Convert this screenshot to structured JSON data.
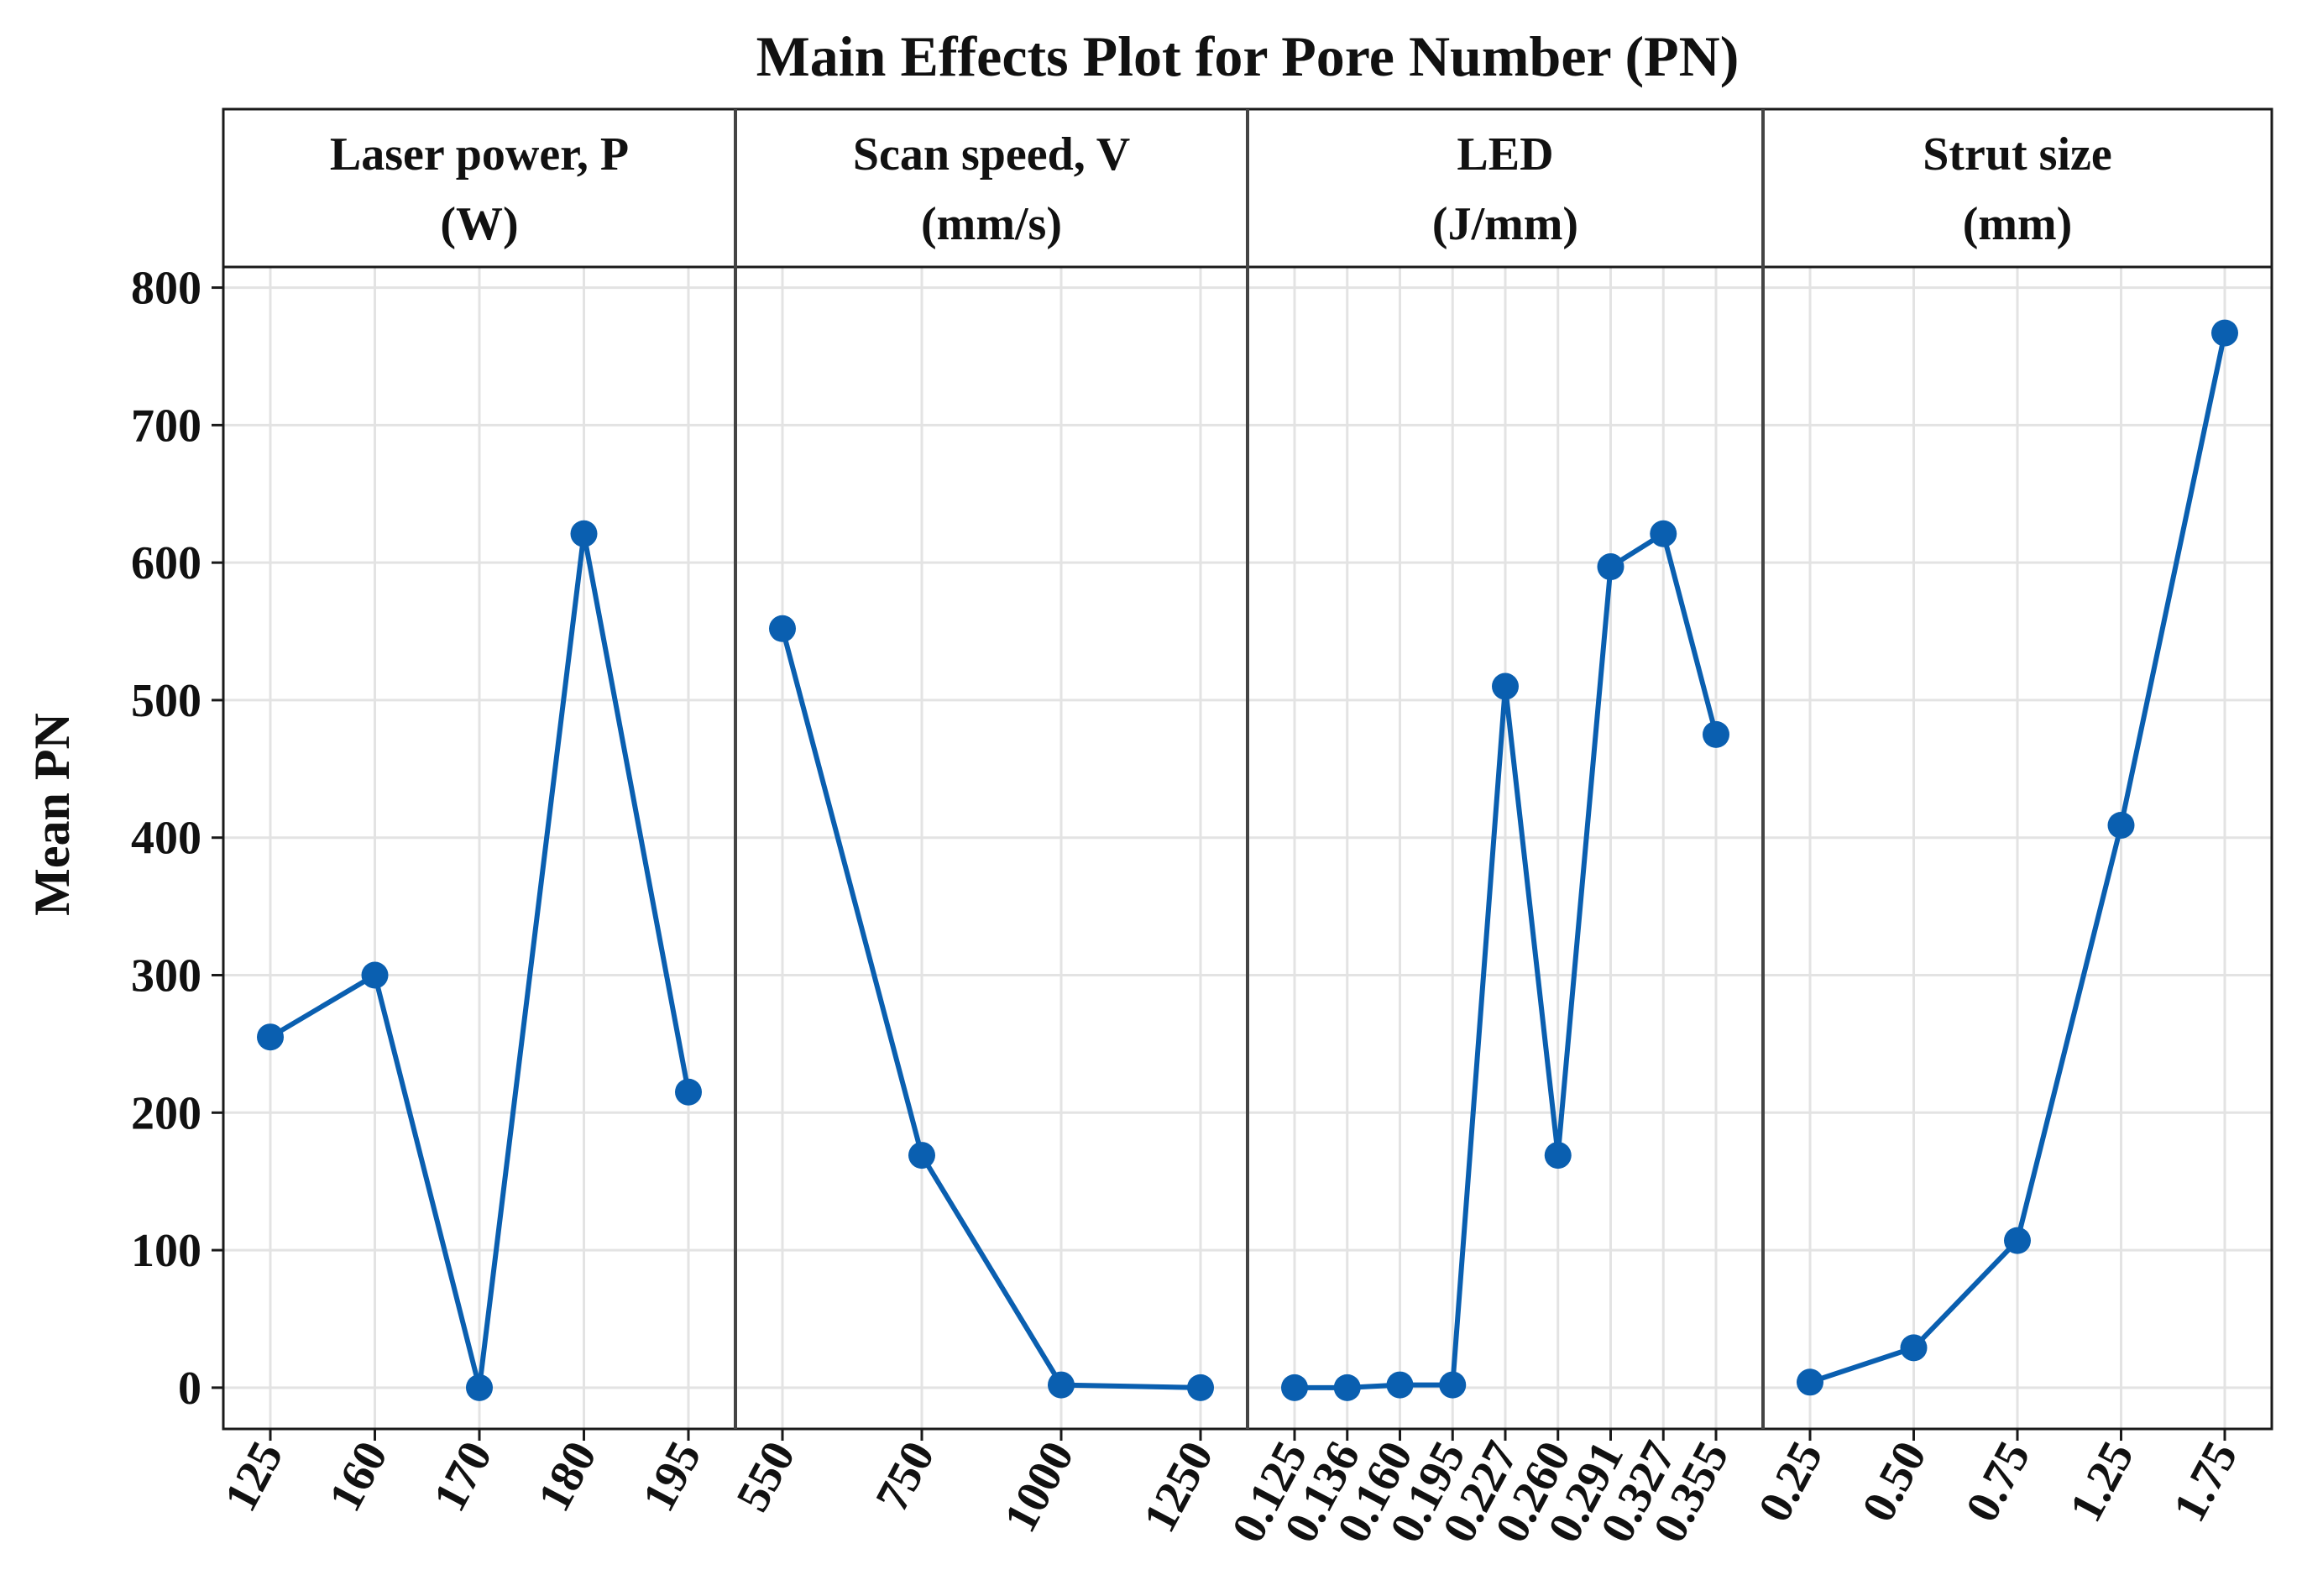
{
  "chart_data": {
    "type": "line",
    "title": "Main Effects Plot for Pore Number (PN)",
    "ylabel": "Mean PN",
    "ylim": [
      -30,
      815
    ],
    "yticks": [
      0,
      100,
      200,
      300,
      400,
      500,
      600,
      700,
      800
    ],
    "grid": true,
    "line_color": "#0a5fb0",
    "marker_color": "#0a5fb0",
    "panels": [
      {
        "strip_line1": "Laser power, P",
        "strip_line2": "(W)",
        "categories": [
          "125",
          "160",
          "170",
          "180",
          "195"
        ],
        "values": [
          255,
          300,
          0,
          621,
          215
        ]
      },
      {
        "strip_line1": "Scan speed, V",
        "strip_line2": "(mm/s)",
        "categories": [
          "550",
          "750",
          "1000",
          "1250"
        ],
        "values": [
          552,
          169,
          2,
          0
        ]
      },
      {
        "strip_line1": "LED",
        "strip_line2": "(J/mm)",
        "categories": [
          "0.125",
          "0.136",
          "0.160",
          "0.195",
          "0.227",
          "0.260",
          "0.291",
          "0.327",
          "0.355"
        ],
        "values": [
          0,
          0,
          2,
          2,
          510,
          169,
          597,
          621,
          475
        ]
      },
      {
        "strip_line1": "Strut size",
        "strip_line2": "(mm)",
        "categories": [
          "0.25",
          "0.50",
          "0.75",
          "1.25",
          "1.75"
        ],
        "values": [
          4,
          29,
          107,
          409,
          767
        ]
      }
    ]
  }
}
